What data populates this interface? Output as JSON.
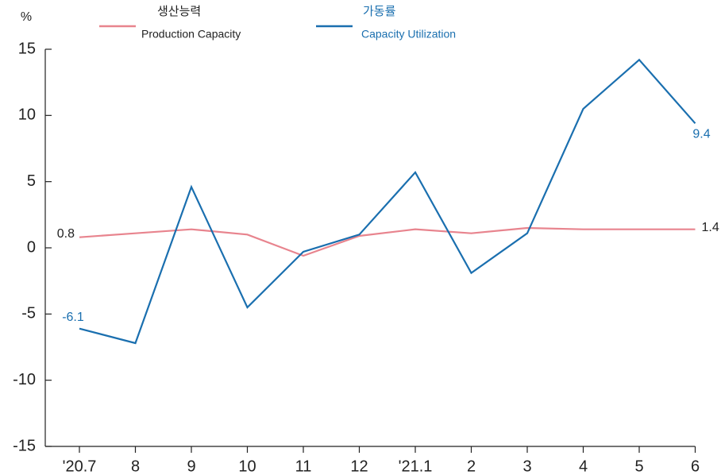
{
  "chart_data": {
    "type": "line",
    "y_label": "%",
    "categories": [
      "'20.7",
      "8",
      "9",
      "10",
      "11",
      "12",
      "'21.1",
      "2",
      "3",
      "4",
      "5",
      "6"
    ],
    "series": [
      {
        "name": "생산능력",
        "name_en": "Production Capacity",
        "color": "#e8848e",
        "values": [
          0.8,
          1.1,
          1.4,
          1.0,
          -0.6,
          0.9,
          1.4,
          1.1,
          1.5,
          1.4,
          1.4,
          1.4
        ]
      },
      {
        "name": "가동률",
        "name_en": "Capacity Utilization",
        "color": "#1a6faf",
        "values": [
          -6.1,
          -7.2,
          4.6,
          -4.5,
          -0.3,
          1.0,
          5.7,
          -1.9,
          1.1,
          10.5,
          14.2,
          9.4
        ]
      }
    ],
    "ylim": [
      -15,
      15
    ],
    "yticks": [
      -15,
      -10,
      -5,
      0,
      5,
      10,
      15
    ]
  }
}
